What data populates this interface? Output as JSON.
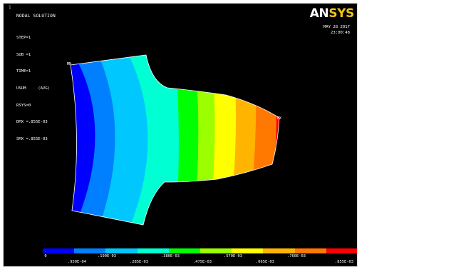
{
  "window_number": "1",
  "title": "NODAL SOLUTION",
  "info_lines": [
    "STEP=1",
    "SUB =1",
    "TIME=1",
    "USUM     (AVG)",
    "RSYS=0",
    "DMX =.855E-03",
    "SMX =.855E-03"
  ],
  "logo": {
    "part1": "AN",
    "part2": "SYS",
    "colors": {
      "part1": "#ffffff",
      "part2": "#f2c418"
    }
  },
  "date": "MAY 28 2017",
  "time": "23:00:48",
  "node_labels": {
    "left": "MN",
    "right": "MX"
  },
  "legend": {
    "colors": [
      "#0000ff",
      "#0080ff",
      "#00c8ff",
      "#00ffd2",
      "#00ff00",
      "#9cff00",
      "#ffff00",
      "#ffb400",
      "#ff7800",
      "#ff0000"
    ],
    "top_labels": [
      "0",
      ".190E-03",
      ".380E-03",
      ".570E-03",
      ".760E-03"
    ],
    "bottom_labels": [
      ".950E-04",
      ".285E-03",
      ".475E-03",
      ".665E-03",
      ".855E-03"
    ]
  }
}
